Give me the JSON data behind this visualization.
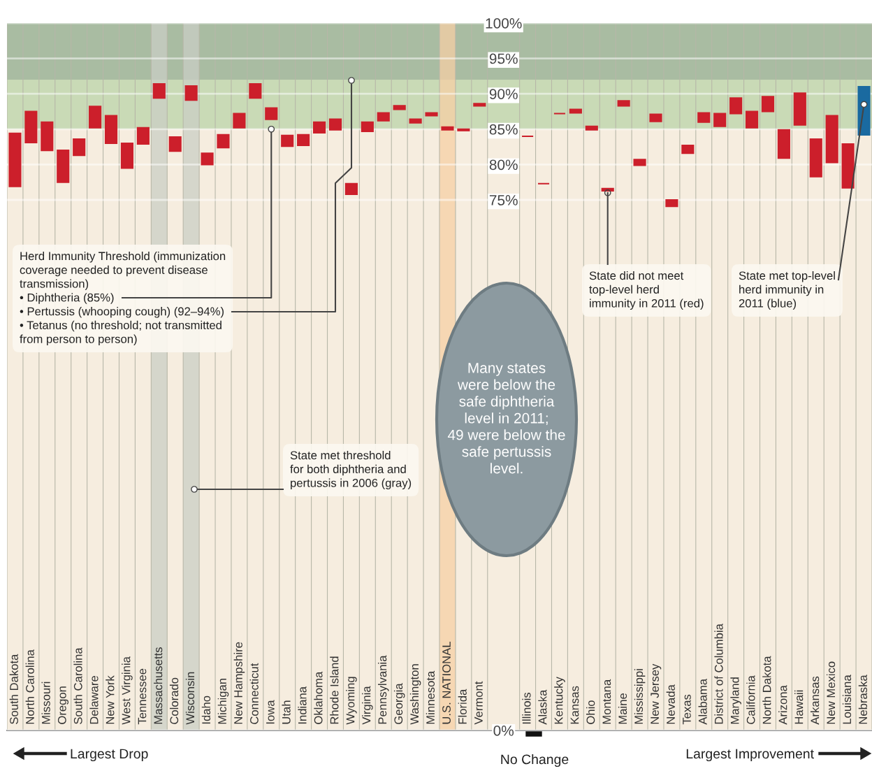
{
  "chart_data": {
    "type": "bar",
    "categories": [
      "South Dakota",
      "North Carolina",
      "Missouri",
      "Oregon",
      "South Carolina",
      "Delaware",
      "New York",
      "West Virginia",
      "Tennessee",
      "Massachusetts",
      "Colorado",
      "Wisconsin",
      "Idaho",
      "Michigan",
      "New Hampshire",
      "Connecticut",
      "Iowa",
      "Utah",
      "Indiana",
      "Oklahoma",
      "Rhode Island",
      "Wyoming",
      "Virginia",
      "Pennsylvania",
      "Georgia",
      "Washington",
      "Minnesota",
      "U.S. NATIONAL",
      "Florida",
      "Vermont",
      null,
      null,
      "Illinois",
      "Alaska",
      "Kentucky",
      "Kansas",
      "Ohio",
      "Montana",
      "Maine",
      "Mississippi",
      "New Jersey",
      "Nevada",
      "Texas",
      "Alabama",
      "District of Columbia",
      "Maryland",
      "California",
      "North Dakota",
      "Arizona",
      "Hawaii",
      "Arkansas",
      "New Mexico",
      "Louisiana",
      "Nebraska"
    ],
    "base": [
      84.4,
      87.5,
      86.0,
      82.0,
      83.6,
      88.2,
      86.9,
      83.0,
      85.2,
      91.4,
      83.9,
      91.1,
      81.6,
      84.2,
      87.2,
      91.4,
      88.0,
      84.1,
      84.2,
      86.0,
      86.4,
      77.3,
      86.0,
      87.3,
      88.3,
      86.4,
      87.3,
      85.3,
      85.0,
      88.6,
      null,
      null,
      84.0,
      77.3,
      87.2,
      87.3,
      84.9,
      76.3,
      88.3,
      79.9,
      86.1,
      74.1,
      81.6,
      86.0,
      85.4,
      87.2,
      85.2,
      87.5,
      80.9,
      85.6,
      78.3,
      80.3,
      76.7,
      84.2
    ],
    "values": [
      -7.5,
      -4.4,
      -4.0,
      -4.5,
      -2.3,
      -3.0,
      -3.9,
      -3.5,
      -2.3,
      -2.0,
      -2.0,
      -2.0,
      -1.6,
      -1.8,
      -2.0,
      -2.0,
      -1.6,
      -1.5,
      -1.5,
      -1.5,
      -1.5,
      -1.5,
      -1.3,
      -1.1,
      -0.5,
      -0.5,
      -0.4,
      -0.4,
      -0.2,
      -0.3,
      null,
      null,
      0,
      0,
      0,
      0.5,
      0.5,
      0.3,
      0.7,
      0.8,
      1.0,
      0.9,
      1.1,
      1.3,
      1.8,
      2.2,
      2.3,
      2.1,
      4.0,
      4.5,
      5.3,
      6.6,
      6.2,
      6.8
    ],
    "colors": [
      "#cc1f2b",
      "#cc1f2b",
      "#cc1f2b",
      "#cc1f2b",
      "#cc1f2b",
      "#cc1f2b",
      "#cc1f2b",
      "#cc1f2b",
      "#cc1f2b",
      "#cc1f2b",
      "#cc1f2b",
      "#cc1f2b",
      "#cc1f2b",
      "#cc1f2b",
      "#cc1f2b",
      "#cc1f2b",
      "#cc1f2b",
      "#cc1f2b",
      "#cc1f2b",
      "#cc1f2b",
      "#cc1f2b",
      "#cc1f2b",
      "#cc1f2b",
      "#cc1f2b",
      "#cc1f2b",
      "#cc1f2b",
      "#cc1f2b",
      "#cc1f2b",
      "#cc1f2b",
      "#cc1f2b",
      "#cc1f2b",
      "#cc1f2b",
      "#cc1f2b",
      "#cc1f2b",
      "#cc1f2b",
      "#cc1f2b",
      "#cc1f2b",
      "#cc1f2b",
      "#cc1f2b",
      "#cc1f2b",
      "#cc1f2b",
      "#cc1f2b",
      "#cc1f2b",
      "#cc1f2b",
      "#cc1f2b",
      "#cc1f2b",
      "#cc1f2b",
      "#cc1f2b",
      "#cc1f2b",
      "#cc1f2b",
      "#cc1f2b",
      "#cc1f2b",
      "#cc1f2b",
      "#1a6aa0"
    ],
    "ylim": [
      0,
      100
    ],
    "yticks": [
      {
        "value": 0,
        "label": "0%"
      },
      {
        "value": 75,
        "label": "75%"
      },
      {
        "value": 80,
        "label": "80%"
      },
      {
        "value": 85,
        "label": "85%"
      },
      {
        "value": 90,
        "label": "90%"
      },
      {
        "value": 95,
        "label": "95%"
      },
      {
        "value": 100,
        "label": "100%"
      }
    ],
    "grid": "y",
    "bands": [
      {
        "axis": "y",
        "from": 85,
        "to": 92,
        "color": "#c9dab6"
      },
      {
        "axis": "y",
        "from": 92,
        "to": 100,
        "color": "#a9bca2"
      },
      {
        "axis": "x",
        "from": "Massachusetts",
        "to": "Massachusetts",
        "color": "#c9cdc4"
      },
      {
        "axis": "x",
        "from": "Wisconsin",
        "to": "Wisconsin",
        "color": "#c9cdc4"
      },
      {
        "axis": "x",
        "from": "U.S. NATIONAL",
        "to": "U.S. NATIONAL",
        "color": "#f6cfa4"
      }
    ],
    "annotations": [
      {
        "text": "Herd Immunity Threshold (immunization\ncoverage needed to prevent disease\ntransmission)\n• Diphtheria (85%)\n• Pertussis (whooping cough) (92–94%)\n• Tetanus (no threshold; not transmitted\nfrom person to person)",
        "x": "Iowa",
        "y": 85
      },
      "State met threshold\nfor both diphtheria and\npertussis in 2006 (gray)",
      "Many states\nwere below the\nsafe diphtheria\nlevel in 2011;\n49 were below the\nsafe pertussis\nlevel.",
      {
        "text": "State did not meet\ntop-level herd\nimmunity in 2011 (red)",
        "x": "Montana",
        "y": 76.3
      },
      {
        "text": "State met top-level\nherd immunity in\n2011 (blue)",
        "x": "Nebraska",
        "y": 88.5
      },
      "Largest Drop",
      "No Change",
      "Largest Improvement"
    ]
  }
}
